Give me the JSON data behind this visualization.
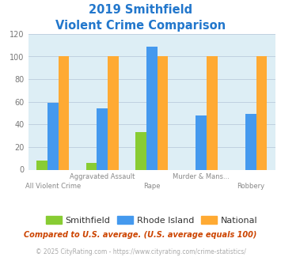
{
  "title_line1": "2019 Smithfield",
  "title_line2": "Violent Crime Comparison",
  "title_color": "#2277cc",
  "smithfield": [
    8,
    6,
    33,
    0,
    0
  ],
  "rhode_island": [
    59,
    54,
    109,
    48,
    49
  ],
  "national": [
    100,
    100,
    100,
    100,
    100
  ],
  "smithfield_color": "#88cc33",
  "rhode_island_color": "#4499ee",
  "national_color": "#ffaa33",
  "ylim": [
    0,
    120
  ],
  "yticks": [
    0,
    20,
    40,
    60,
    80,
    100,
    120
  ],
  "bar_width": 0.22,
  "plot_bg_color": "#ddeef5",
  "grid_color": "#bbccdd",
  "row1_labels": [
    "",
    "Aggravated Assault",
    "",
    "Murder & Mans...",
    ""
  ],
  "row2_labels": [
    "All Violent Crime",
    "",
    "Rape",
    "",
    "Robbery"
  ],
  "legend_labels": [
    "Smithfield",
    "Rhode Island",
    "National"
  ],
  "footer_text": "Compared to U.S. average. (U.S. average equals 100)",
  "footer_color": "#cc4400",
  "copyright_text": "© 2025 CityRating.com - https://www.cityrating.com/crime-statistics/",
  "copyright_color": "#aaaaaa",
  "copyright_link_color": "#4488cc"
}
